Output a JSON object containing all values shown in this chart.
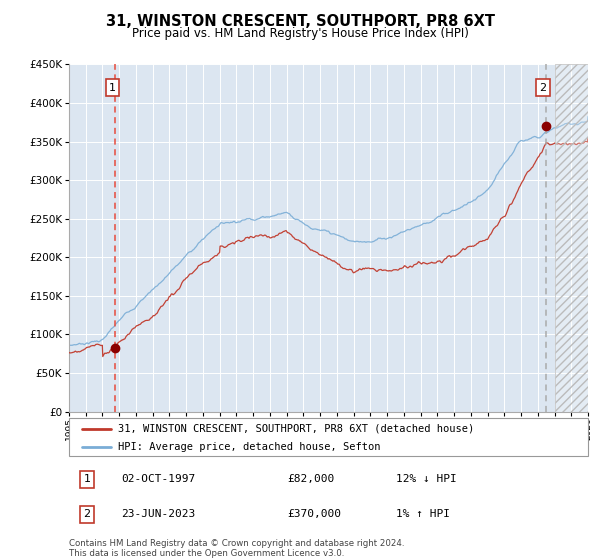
{
  "title": "31, WINSTON CRESCENT, SOUTHPORT, PR8 6XT",
  "subtitle": "Price paid vs. HM Land Registry's House Price Index (HPI)",
  "legend_line1": "31, WINSTON CRESCENT, SOUTHPORT, PR8 6XT (detached house)",
  "legend_line2": "HPI: Average price, detached house, Sefton",
  "annotation1_num": "1",
  "annotation1_date": "02-OCT-1997",
  "annotation1_price": "£82,000",
  "annotation1_hpi": "12% ↓ HPI",
  "annotation2_num": "2",
  "annotation2_date": "23-JUN-2023",
  "annotation2_price": "£370,000",
  "annotation2_hpi": "1% ↑ HPI",
  "footer": "Contains HM Land Registry data © Crown copyright and database right 2024.\nThis data is licensed under the Open Government Licence v3.0.",
  "point1_year": 1997.75,
  "point1_value": 82000,
  "point2_year": 2023.47,
  "point2_value": 370000,
  "xmin": 1995,
  "xmax": 2026,
  "ymin": 0,
  "ymax": 450000,
  "hatch_start": 2024.0,
  "plot_bg_color": "#dce6f1",
  "grid_color": "#ffffff",
  "red_line_color": "#c0392b",
  "blue_line_color": "#7aadd6",
  "dashed_line1_color": "#e74c3c",
  "dashed_line2_color": "#aaaaaa",
  "marker_color": "#8b0000",
  "box_edge_color": "#c0392b"
}
